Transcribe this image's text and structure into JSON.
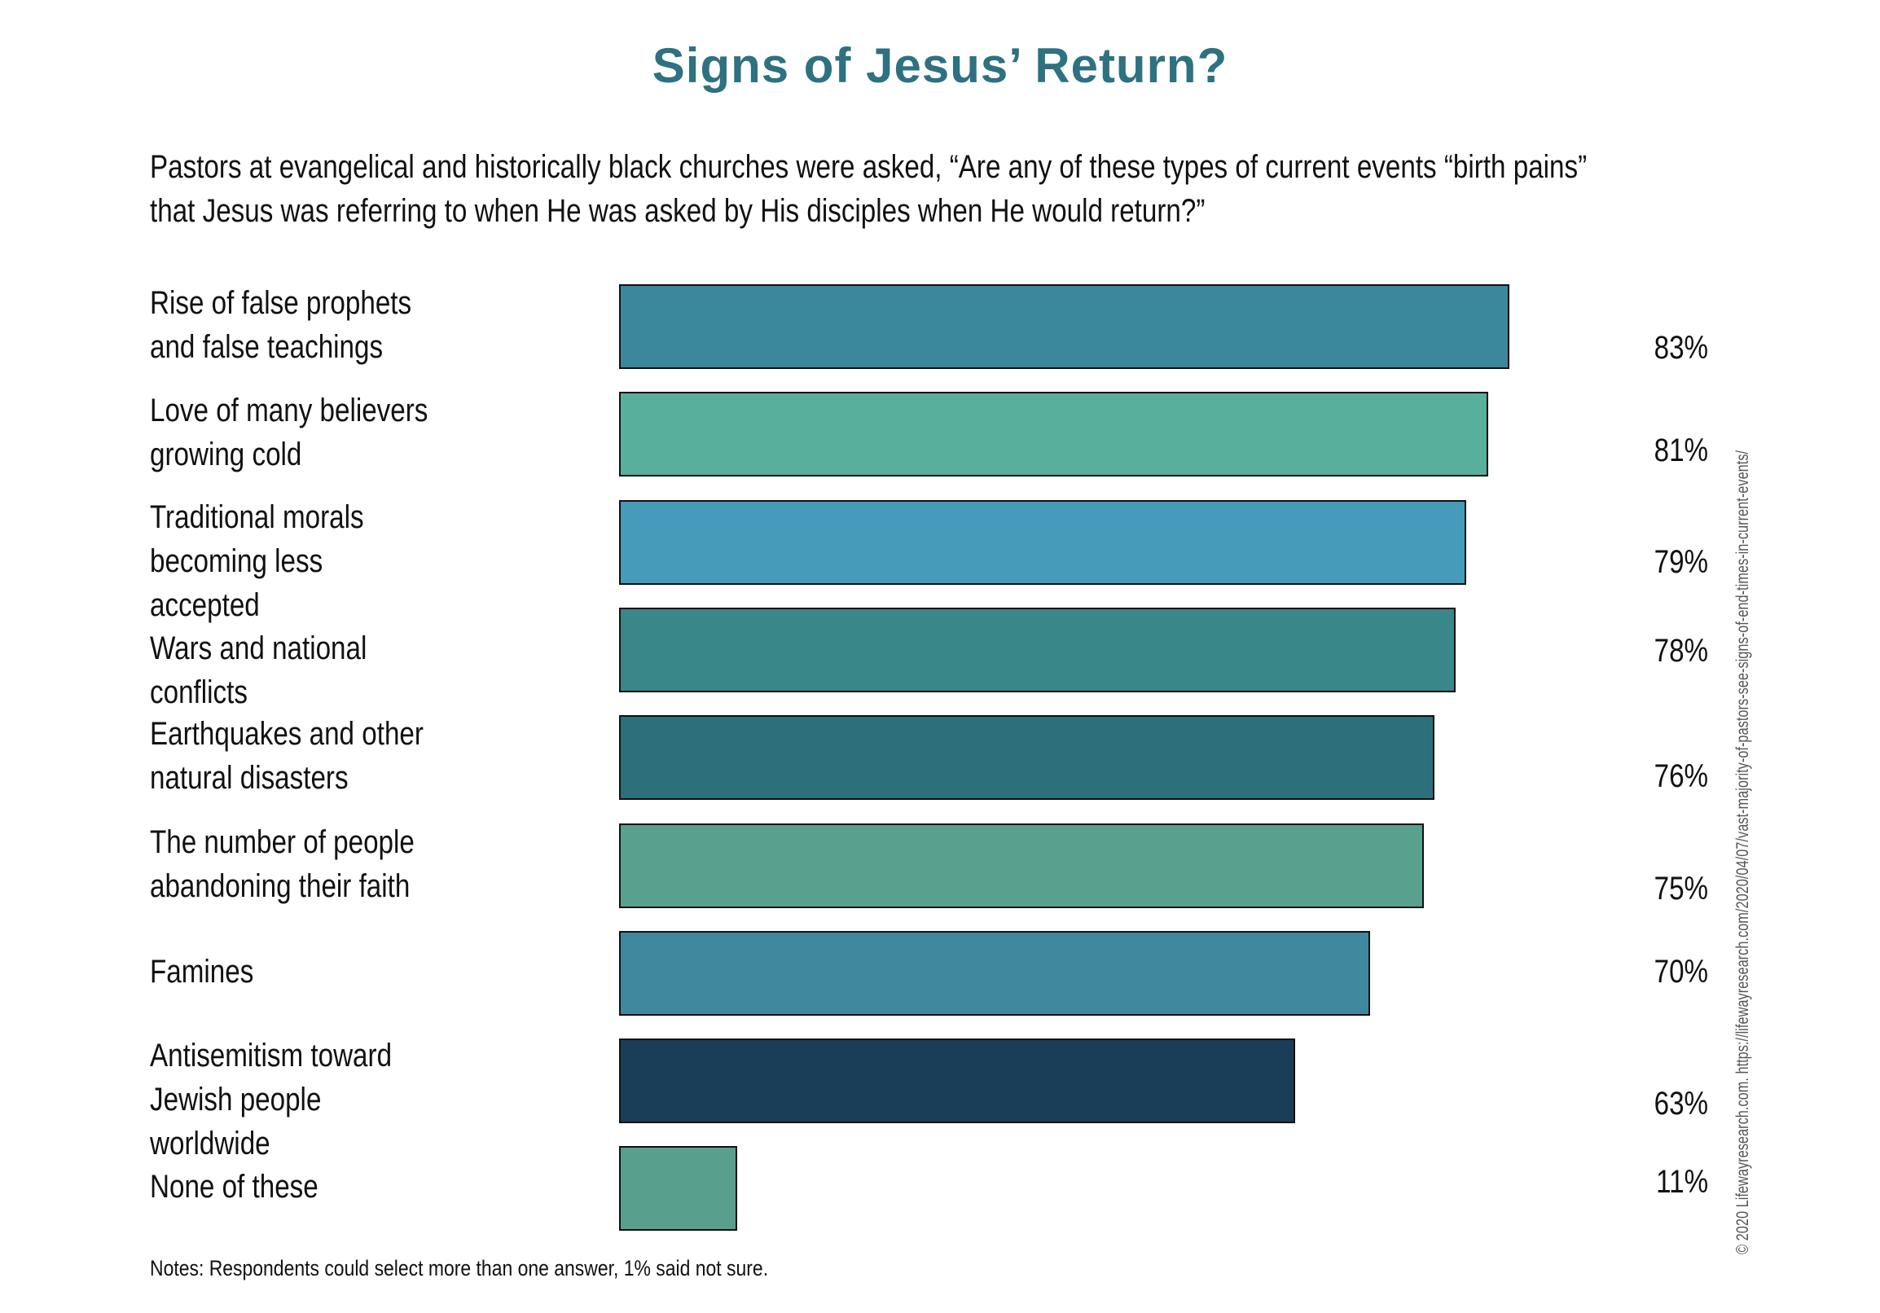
{
  "chart_data": {
    "type": "bar",
    "orientation": "horizontal",
    "title": "Signs of Jesus’ Return?",
    "subtitle": "Pastors at evangelical and historically black churches were asked, “Are any of these types of current events “birth pains” that Jesus was referring to when He was asked by His disciples when He would return?”",
    "categories": [
      "Rise of false prophets and false teachings",
      "Love of many believers growing cold",
      "Traditional morals becoming less accepted",
      "Wars and national conflicts",
      "Earthquakes and other natural disasters",
      "The number of people abandoning their faith",
      "Famines",
      "Antisemitism toward Jewish people worldwide",
      "None of these"
    ],
    "values": [
      83,
      81,
      79,
      78,
      76,
      75,
      70,
      63,
      11
    ],
    "value_labels": [
      "83%",
      "81%",
      "79%",
      "78%",
      "76%",
      "75%",
      "70%",
      "63%",
      "11%"
    ],
    "colors": [
      "#3b879c",
      "#58b09c",
      "#459bb9",
      "#3a878a",
      "#2e6f7c",
      "#59a08f",
      "#3f889e",
      "#1a3e57",
      "#589f8d"
    ],
    "unit": "%",
    "xlim": [
      0,
      100
    ],
    "grid": false,
    "legend": "none",
    "notes": "Notes: Respondents could select more than one answer, 1% said not sure.",
    "copyright": "© 2020 Lifewayresearch.com.  https://lifewayresearch.com/2020/04/07/vast-majority-of-pastors-see-signs-of-end-times-in-current-events/"
  }
}
